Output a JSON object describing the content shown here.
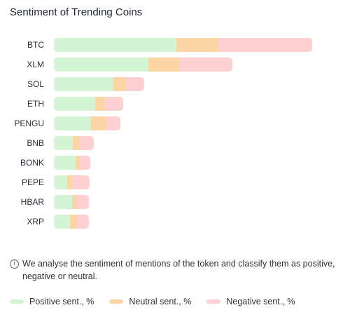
{
  "chart_data": {
    "type": "bar",
    "orientation": "horizontal",
    "stacked": true,
    "title": "Sentiment of Trending Coins",
    "categories": [
      "BTC",
      "XLM",
      "SOL",
      "ETH",
      "PENGU",
      "BNB",
      "BONK",
      "PEPE",
      "HBAR",
      "XRP"
    ],
    "series": [
      {
        "name": "Positive sent., %",
        "color": "#d4f5d4",
        "values": [
          175,
          135,
          84,
          59,
          53,
          27,
          31,
          19,
          26,
          23
        ]
      },
      {
        "name": "Neutral sent., %",
        "color": "#fbd5a3",
        "values": [
          60,
          44,
          18,
          13,
          22,
          10,
          6,
          8,
          7,
          10
        ]
      },
      {
        "name": "Negative sent., %",
        "color": "#ffd0d2",
        "values": [
          134,
          76,
          27,
          27,
          20,
          20,
          15,
          24,
          17,
          17
        ]
      }
    ],
    "legend_position": "bottom",
    "grid": false
  },
  "info": {
    "icon": "info-icon",
    "text": "We analyse the sentiment of mentions of the token and classify them as positive, negative or neutral."
  }
}
